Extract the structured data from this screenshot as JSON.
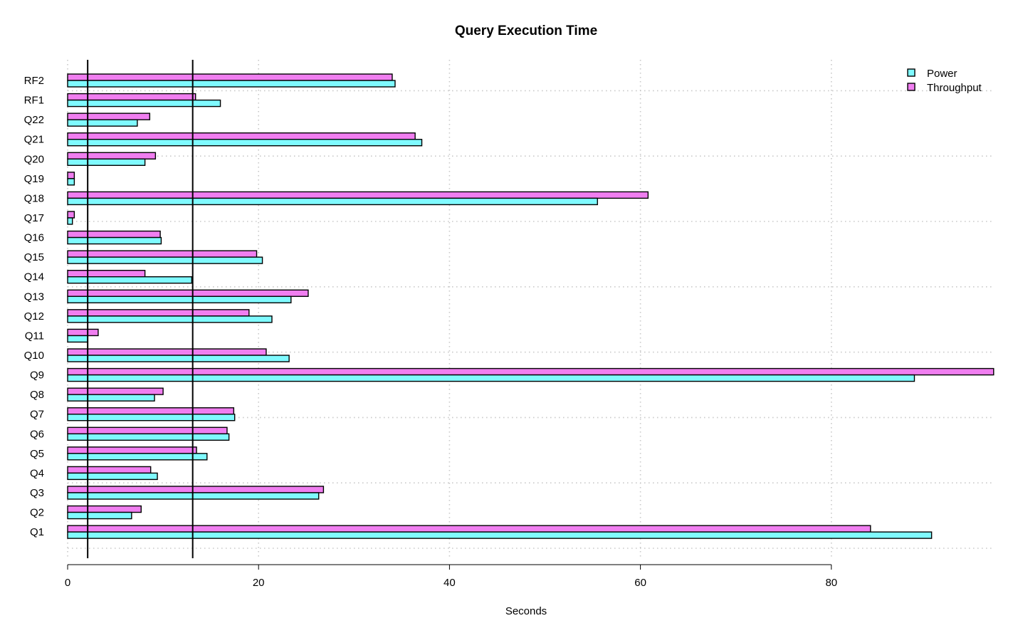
{
  "chart_data": {
    "type": "bar",
    "orientation": "horizontal",
    "title": "Query Execution Time",
    "xlabel": "Seconds",
    "ylabel": "",
    "xlim": [
      0,
      97
    ],
    "xticks": [
      0,
      20,
      40,
      60,
      80
    ],
    "grid": true,
    "legend_position": "top-right",
    "categories": [
      "Q1",
      "Q2",
      "Q3",
      "Q4",
      "Q5",
      "Q6",
      "Q7",
      "Q8",
      "Q9",
      "Q10",
      "Q11",
      "Q12",
      "Q13",
      "Q14",
      "Q15",
      "Q16",
      "Q17",
      "Q18",
      "Q19",
      "Q20",
      "Q21",
      "Q22",
      "RF1",
      "RF2"
    ],
    "series": [
      {
        "name": "Power",
        "color": "#7ffaff",
        "values": [
          90.5,
          6.7,
          26.3,
          9.4,
          14.6,
          16.9,
          17.5,
          9.1,
          88.7,
          23.2,
          2.1,
          21.4,
          23.4,
          13.0,
          20.4,
          9.8,
          0.5,
          55.5,
          0.7,
          8.1,
          37.1,
          7.3,
          16.0,
          34.3
        ]
      },
      {
        "name": "Throughput",
        "color": "#f07ef0",
        "values": [
          84.1,
          7.7,
          26.8,
          8.7,
          13.5,
          16.7,
          17.4,
          10.0,
          97.0,
          20.8,
          3.2,
          19.0,
          25.2,
          8.1,
          19.8,
          9.7,
          0.7,
          60.8,
          0.7,
          9.2,
          36.4,
          8.6,
          13.4,
          34.0
        ]
      }
    ],
    "reference_lines": [
      2.1,
      13.1
    ]
  }
}
